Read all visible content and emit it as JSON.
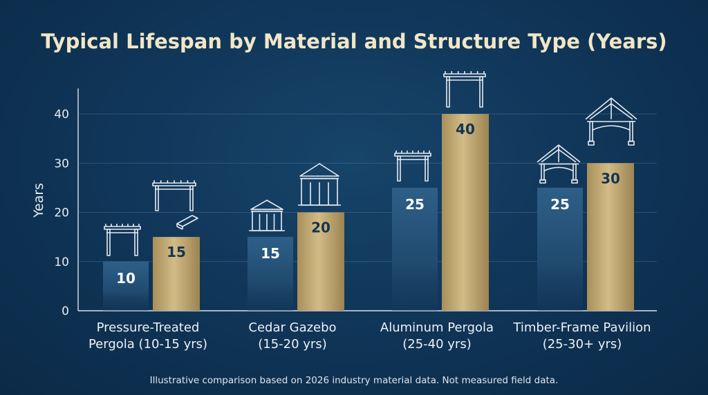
{
  "chart_data": {
    "type": "bar",
    "title": "Typical Lifespan by Material and Structure Type (Years)",
    "ylabel": "Years",
    "ylim": [
      0,
      45
    ],
    "yticks": [
      0,
      10,
      20,
      30,
      40
    ],
    "grid": true,
    "categories": [
      [
        "Pressure-Treated",
        "Pergola (10-15 yrs)"
      ],
      [
        "Cedar Gazebo",
        "(15-20 yrs)"
      ],
      [
        "Aluminum Pergola",
        "(25-40 yrs)"
      ],
      [
        "Timber-Frame Pavilion",
        "(25-30+ yrs)"
      ]
    ],
    "series": [
      {
        "values": [
          10,
          15,
          25,
          25
        ],
        "color": "#2b5a82"
      },
      {
        "values": [
          15,
          20,
          40,
          30
        ],
        "color": "#c2a870"
      }
    ],
    "icons": [
      "pergola-icon",
      "gazebo-icon",
      "pergola-icon",
      "pavilion-icon"
    ],
    "footnote": "Illustrative comparison based on 2026 industry material data. Not measured field data."
  }
}
